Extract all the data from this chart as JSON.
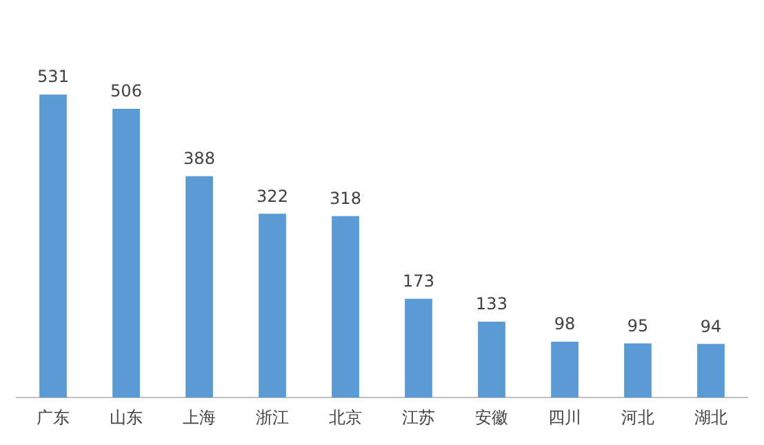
{
  "chart_data": {
    "type": "bar",
    "categories": [
      "广东",
      "山东",
      "上海",
      "浙江",
      "北京",
      "江苏",
      "安徽",
      "四川",
      "河北",
      "湖北"
    ],
    "values": [
      531,
      506,
      388,
      322,
      318,
      173,
      133,
      98,
      95,
      94
    ],
    "color": "#5b9bd5",
    "data_labels": true,
    "grid": false,
    "legend": false,
    "tick_labels": "x"
  }
}
